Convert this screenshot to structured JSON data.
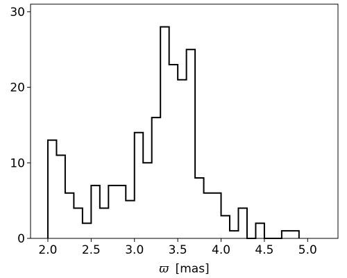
{
  "chart_data": {
    "type": "histogram",
    "title": "",
    "xlabel_symbol": "ϖ",
    "xlabel_unit": "[mas]",
    "ylabel": "",
    "xlim": [
      1.8,
      5.35
    ],
    "ylim": [
      0,
      31
    ],
    "bin_width": 0.1,
    "bin_edges": [
      2.0,
      2.1,
      2.2,
      2.3,
      2.4,
      2.5,
      2.6,
      2.7,
      2.8,
      2.9,
      3.0,
      3.1,
      3.2,
      3.3,
      3.4,
      3.5,
      3.6,
      3.7,
      3.8,
      3.9,
      4.0,
      4.1,
      4.2,
      4.3,
      4.4,
      4.5,
      4.6,
      4.7,
      4.8,
      4.9
    ],
    "counts": [
      13,
      11,
      6,
      4,
      2,
      7,
      4,
      7,
      7,
      5,
      14,
      10,
      16,
      28,
      23,
      21,
      25,
      8,
      6,
      6,
      3,
      1,
      4,
      0,
      2,
      0,
      0,
      1,
      1
    ],
    "x_ticks": [
      2.0,
      2.5,
      3.0,
      3.5,
      4.0,
      4.5,
      5.0
    ],
    "x_tick_labels": [
      "2.0",
      "2.5",
      "3.0",
      "3.5",
      "4.0",
      "4.5",
      "5.0"
    ],
    "y_ticks": [
      0,
      10,
      20,
      30
    ],
    "y_tick_labels": [
      "0",
      "10",
      "20",
      "30"
    ],
    "grid": false,
    "legend": "none",
    "line_color": "#000000"
  }
}
